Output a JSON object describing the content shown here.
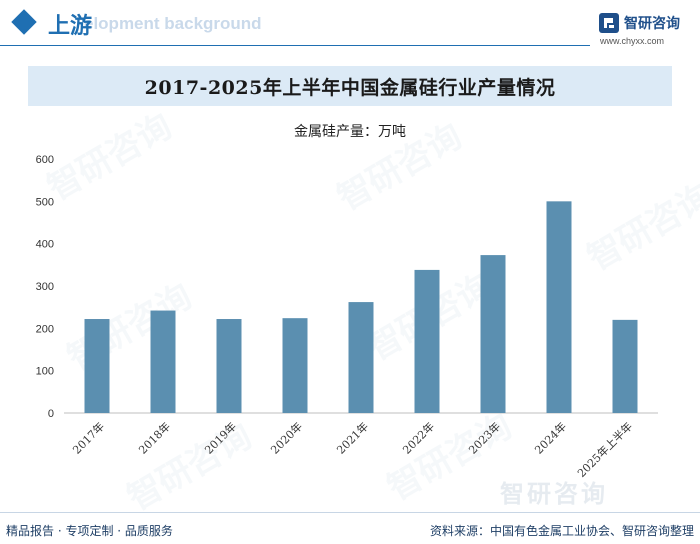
{
  "header": {
    "section_title": "上游",
    "ghost_text": "elopment background",
    "brand_name": "智研咨询",
    "brand_url": "www.chyxx.com"
  },
  "watermark": "智研咨询",
  "chart_data": {
    "type": "bar",
    "title": "2017-2025年上半年中国金属硅行业产量情况",
    "series_label": "金属硅产量：万吨",
    "categories": [
      "2017年",
      "2018年",
      "2019年",
      "2020年",
      "2021年",
      "2022年",
      "2023年",
      "2024年",
      "2025年上半年"
    ],
    "values": [
      222,
      242,
      222,
      224,
      262,
      338,
      373,
      500,
      220
    ],
    "yticks": [
      0,
      100,
      200,
      300,
      400,
      500,
      600
    ],
    "ylim": [
      0,
      600
    ],
    "bar_color": "#5b8fb0",
    "xlabel": "",
    "ylabel": ""
  },
  "footer": {
    "left": "精品报告 · 专项定制 · 品质服务",
    "right": "资料来源：中国有色金属工业协会、智研咨询整理"
  }
}
